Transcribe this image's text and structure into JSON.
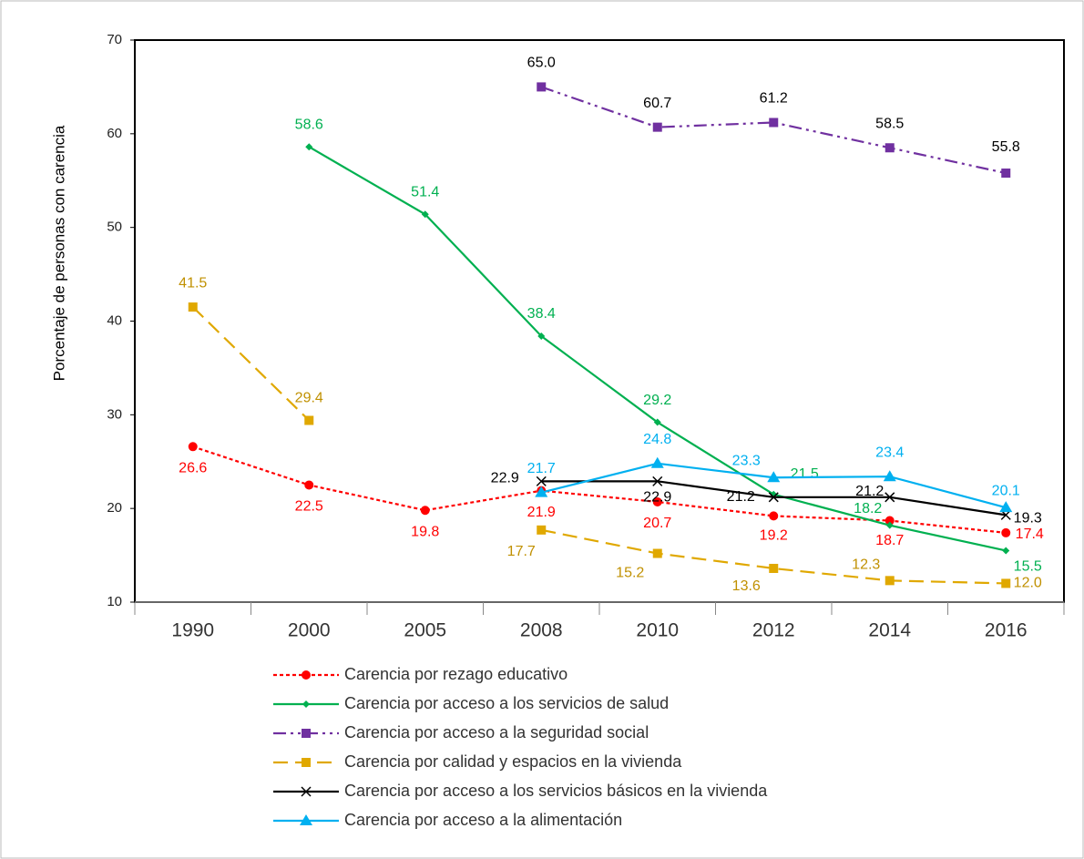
{
  "chart_data": {
    "type": "line",
    "y_label": "Porcentaje de personas con carencia",
    "categories": [
      "1990",
      "2000",
      "2005",
      "2008",
      "2010",
      "2012",
      "2014",
      "2016"
    ],
    "ylim": [
      10,
      70
    ],
    "yticks": [
      10,
      20,
      30,
      40,
      50,
      60,
      70
    ],
    "series": [
      {
        "name": "Carencia por rezago educativo",
        "color": "#ff0000",
        "marker": "circle",
        "dash": "4,3",
        "values": [
          26.6,
          22.5,
          19.8,
          21.9,
          20.7,
          19.2,
          18.7,
          17.4
        ],
        "value_labels": [
          "26.6",
          "22.5",
          "19.8",
          "21.9",
          "20.7",
          "19.2",
          "18.7",
          "17.4"
        ]
      },
      {
        "name": "Carencia por acceso a los servicios de salud",
        "color": "#00b050",
        "marker": "diamond",
        "dash": "none",
        "values": [
          null,
          58.6,
          51.4,
          38.4,
          29.2,
          21.5,
          18.2,
          15.5
        ],
        "value_labels": [
          null,
          "58.6",
          "51.4",
          "38.4",
          "29.2",
          "21.5",
          "18.2",
          "15.5"
        ]
      },
      {
        "name": "Carencia por acceso a la seguridad social",
        "color": "#7030a0",
        "marker": "square",
        "dash": "14,5,3,5,3,5",
        "values": [
          null,
          null,
          null,
          65.0,
          60.7,
          61.2,
          58.5,
          55.8
        ],
        "value_labels": [
          null,
          null,
          null,
          "65.0",
          "60.7",
          "61.2",
          "58.5",
          "55.8"
        ]
      },
      {
        "name": "Carencia por calidad y espacios en la vivienda",
        "color": "#e0a800",
        "marker": "square",
        "dash": "16,8",
        "values": [
          41.5,
          29.4,
          null,
          17.7,
          15.2,
          13.6,
          12.3,
          12.0
        ],
        "value_labels": [
          "41.5",
          "29.4",
          null,
          "17.7",
          "15.2",
          "13.6",
          "12.3",
          "12.0"
        ]
      },
      {
        "name": "Carencia por acceso a los servicios básicos en la vivienda",
        "color": "#000000",
        "marker": "x",
        "dash": "none",
        "values": [
          null,
          null,
          null,
          22.9,
          22.9,
          21.2,
          21.2,
          19.3
        ],
        "value_labels": [
          null,
          null,
          null,
          "22.9",
          "22.9",
          "21.2",
          "21.2",
          "19.3"
        ]
      },
      {
        "name": "Carencia por acceso a la alimentación",
        "color": "#00b0f0",
        "marker": "triangle",
        "dash": "none",
        "values": [
          null,
          null,
          null,
          21.7,
          24.8,
          23.3,
          23.4,
          20.1
        ],
        "value_labels": [
          null,
          null,
          null,
          "21.7",
          "24.8",
          "23.3",
          "23.4",
          "20.1"
        ]
      }
    ]
  }
}
